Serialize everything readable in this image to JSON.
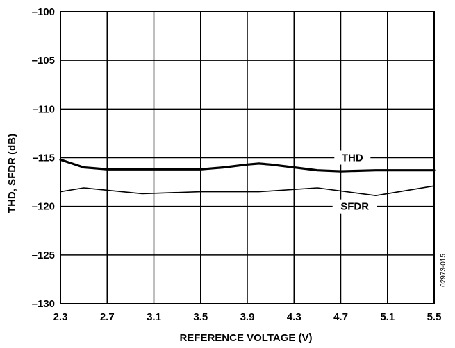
{
  "chart_data": {
    "type": "line",
    "xlabel": "REFERENCE VOLTAGE (V)",
    "ylabel": "THD, SFDR (dB)",
    "xlim": [
      2.3,
      5.5
    ],
    "ylim": [
      -130,
      -100
    ],
    "xticks": [
      2.3,
      2.7,
      3.1,
      3.5,
      3.9,
      4.3,
      4.7,
      5.1,
      5.5
    ],
    "xtick_labels": [
      "2.3",
      "2.7",
      "3.1",
      "3.5",
      "3.9",
      "4.3",
      "4.7",
      "5.1",
      "5.5"
    ],
    "yticks": [
      -100,
      -105,
      -110,
      -115,
      -120,
      -125,
      -130
    ],
    "ytick_labels": [
      "–100",
      "–105",
      "–110",
      "–115",
      "–120",
      "–125",
      "–130"
    ],
    "grid": true,
    "series": [
      {
        "name": "THD",
        "x": [
          2.3,
          2.4,
          2.5,
          2.6,
          2.7,
          3.0,
          3.5,
          3.7,
          3.9,
          4.0,
          4.1,
          4.3,
          4.5,
          4.7,
          5.0,
          5.2,
          5.5
        ],
        "y": [
          -115.2,
          -115.6,
          -116.0,
          -116.1,
          -116.2,
          -116.2,
          -116.2,
          -116.0,
          -115.7,
          -115.6,
          -115.7,
          -116.0,
          -116.3,
          -116.4,
          -116.3,
          -116.3,
          -116.3
        ]
      },
      {
        "name": "SFDR",
        "x": [
          2.3,
          2.5,
          3.0,
          3.5,
          4.0,
          4.5,
          5.0,
          5.5
        ],
        "y": [
          -118.5,
          -118.1,
          -118.7,
          -118.5,
          -118.5,
          -118.1,
          -118.9,
          -117.9
        ]
      }
    ],
    "annotations": [
      "THD",
      "SFDR",
      "02973-015"
    ]
  }
}
